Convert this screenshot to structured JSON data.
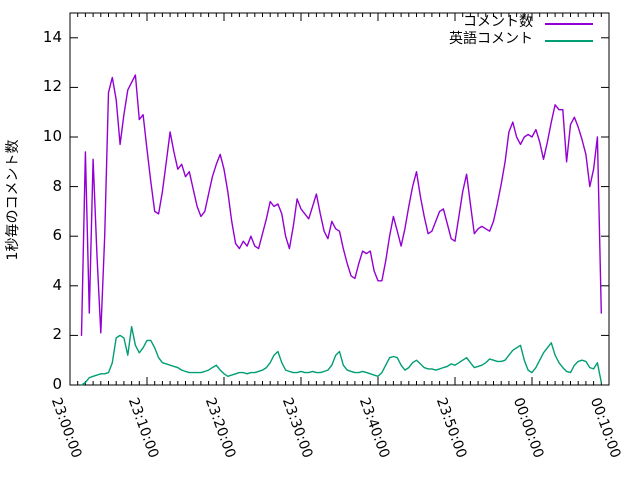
{
  "chart_data": {
    "type": "line",
    "title": "",
    "xlabel": "",
    "ylabel": "1秒毎のコメント数",
    "x_tick_labels": [
      "23:00:00",
      "23:10:00",
      "23:20:00",
      "23:30:00",
      "23:40:00",
      "23:50:00",
      "00:00:00",
      "00:10:00"
    ],
    "y_tick_labels": [
      "0",
      "2",
      "4",
      "6",
      "8",
      "10",
      "12",
      "14"
    ],
    "ylim": [
      0,
      15
    ],
    "x_range_minutes": 70,
    "x_major_tick_minutes": 10,
    "x_minor_tick_minutes": 1,
    "grid": false,
    "legend_position": "top-right-inside",
    "background_color": "#ffffff",
    "border_color": "#000000",
    "series": [
      {
        "name": "コメント数",
        "color": "#9400d3",
        "points": [
          [
            "23:01:30",
            2.0
          ],
          [
            "23:02:00",
            9.4
          ],
          [
            "23:02:30",
            2.9
          ],
          [
            "23:03:00",
            9.1
          ],
          [
            "23:03:30",
            5.2
          ],
          [
            "23:04:00",
            2.1
          ],
          [
            "23:04:30",
            6.0
          ],
          [
            "23:05:00",
            11.8
          ],
          [
            "23:05:30",
            12.4
          ],
          [
            "23:06:00",
            11.5
          ],
          [
            "23:06:30",
            9.7
          ],
          [
            "23:07:00",
            10.9
          ],
          [
            "23:07:30",
            11.9
          ],
          [
            "23:08:00",
            12.2
          ],
          [
            "23:08:30",
            12.5
          ],
          [
            "23:09:00",
            10.7
          ],
          [
            "23:09:30",
            10.9
          ],
          [
            "23:10:00",
            9.5
          ],
          [
            "23:10:30",
            8.2
          ],
          [
            "23:11:00",
            7.0
          ],
          [
            "23:11:30",
            6.9
          ],
          [
            "23:12:00",
            7.8
          ],
          [
            "23:12:30",
            9.0
          ],
          [
            "23:13:00",
            10.2
          ],
          [
            "23:13:30",
            9.4
          ],
          [
            "23:14:00",
            8.7
          ],
          [
            "23:14:30",
            8.9
          ],
          [
            "23:15:00",
            8.4
          ],
          [
            "23:15:30",
            8.6
          ],
          [
            "23:16:00",
            7.9
          ],
          [
            "23:16:30",
            7.2
          ],
          [
            "23:17:00",
            6.8
          ],
          [
            "23:17:30",
            7.0
          ],
          [
            "23:18:00",
            7.7
          ],
          [
            "23:18:30",
            8.4
          ],
          [
            "23:19:00",
            8.9
          ],
          [
            "23:19:30",
            9.3
          ],
          [
            "23:20:00",
            8.7
          ],
          [
            "23:20:30",
            7.8
          ],
          [
            "23:21:00",
            6.6
          ],
          [
            "23:21:30",
            5.7
          ],
          [
            "23:22:00",
            5.5
          ],
          [
            "23:22:30",
            5.8
          ],
          [
            "23:23:00",
            5.6
          ],
          [
            "23:23:30",
            6.0
          ],
          [
            "23:24:00",
            5.6
          ],
          [
            "23:24:30",
            5.5
          ],
          [
            "23:25:00",
            6.1
          ],
          [
            "23:25:30",
            6.7
          ],
          [
            "23:26:00",
            7.4
          ],
          [
            "23:26:30",
            7.2
          ],
          [
            "23:27:00",
            7.3
          ],
          [
            "23:27:30",
            6.9
          ],
          [
            "23:28:00",
            6.0
          ],
          [
            "23:28:30",
            5.5
          ],
          [
            "23:29:00",
            6.4
          ],
          [
            "23:29:30",
            7.5
          ],
          [
            "23:30:00",
            7.1
          ],
          [
            "23:30:30",
            6.9
          ],
          [
            "23:31:00",
            6.7
          ],
          [
            "23:31:30",
            7.2
          ],
          [
            "23:32:00",
            7.7
          ],
          [
            "23:32:30",
            6.9
          ],
          [
            "23:33:00",
            6.2
          ],
          [
            "23:33:30",
            5.9
          ],
          [
            "23:34:00",
            6.6
          ],
          [
            "23:34:30",
            6.3
          ],
          [
            "23:35:00",
            6.2
          ],
          [
            "23:35:30",
            5.5
          ],
          [
            "23:36:00",
            4.9
          ],
          [
            "23:36:30",
            4.4
          ],
          [
            "23:37:00",
            4.3
          ],
          [
            "23:37:30",
            4.9
          ],
          [
            "23:38:00",
            5.4
          ],
          [
            "23:38:30",
            5.3
          ],
          [
            "23:39:00",
            5.4
          ],
          [
            "23:39:30",
            4.6
          ],
          [
            "23:40:00",
            4.2
          ],
          [
            "23:40:30",
            4.2
          ],
          [
            "23:41:00",
            5.0
          ],
          [
            "23:41:30",
            6.0
          ],
          [
            "23:42:00",
            6.8
          ],
          [
            "23:42:30",
            6.2
          ],
          [
            "23:43:00",
            5.6
          ],
          [
            "23:43:30",
            6.3
          ],
          [
            "23:44:00",
            7.2
          ],
          [
            "23:44:30",
            8.0
          ],
          [
            "23:45:00",
            8.6
          ],
          [
            "23:45:30",
            7.6
          ],
          [
            "23:46:00",
            6.8
          ],
          [
            "23:46:30",
            6.1
          ],
          [
            "23:47:00",
            6.2
          ],
          [
            "23:47:30",
            6.6
          ],
          [
            "23:48:00",
            7.0
          ],
          [
            "23:48:30",
            7.1
          ],
          [
            "23:49:00",
            6.5
          ],
          [
            "23:49:30",
            5.9
          ],
          [
            "23:50:00",
            5.8
          ],
          [
            "23:50:30",
            6.8
          ],
          [
            "23:51:00",
            7.8
          ],
          [
            "23:51:30",
            8.5
          ],
          [
            "23:52:00",
            7.3
          ],
          [
            "23:52:30",
            6.1
          ],
          [
            "23:53:00",
            6.3
          ],
          [
            "23:53:30",
            6.4
          ],
          [
            "23:54:00",
            6.3
          ],
          [
            "23:54:30",
            6.2
          ],
          [
            "23:55:00",
            6.6
          ],
          [
            "23:55:30",
            7.3
          ],
          [
            "23:56:00",
            8.1
          ],
          [
            "23:56:30",
            9.0
          ],
          [
            "23:57:00",
            10.2
          ],
          [
            "23:57:30",
            10.6
          ],
          [
            "23:58:00",
            10.0
          ],
          [
            "23:58:30",
            9.7
          ],
          [
            "23:59:00",
            10.0
          ],
          [
            "23:59:30",
            10.1
          ],
          [
            "00:00:00",
            10.0
          ],
          [
            "00:00:30",
            10.3
          ],
          [
            "00:01:00",
            9.8
          ],
          [
            "00:01:30",
            9.1
          ],
          [
            "00:02:00",
            9.8
          ],
          [
            "00:02:30",
            10.6
          ],
          [
            "00:03:00",
            11.3
          ],
          [
            "00:03:30",
            11.1
          ],
          [
            "00:04:00",
            11.1
          ],
          [
            "00:04:30",
            9.0
          ],
          [
            "00:05:00",
            10.5
          ],
          [
            "00:05:30",
            10.8
          ],
          [
            "00:06:00",
            10.4
          ],
          [
            "00:06:30",
            9.9
          ],
          [
            "00:07:00",
            9.3
          ],
          [
            "00:07:30",
            8.0
          ],
          [
            "00:08:00",
            8.7
          ],
          [
            "00:08:30",
            10.0
          ],
          [
            "00:09:00",
            2.9
          ]
        ]
      },
      {
        "name": "英語コメント",
        "color": "#009e73",
        "points": [
          [
            "23:01:30",
            0.0
          ],
          [
            "23:02:00",
            0.1
          ],
          [
            "23:02:30",
            0.3
          ],
          [
            "23:03:00",
            0.35
          ],
          [
            "23:03:30",
            0.4
          ],
          [
            "23:04:00",
            0.45
          ],
          [
            "23:04:30",
            0.45
          ],
          [
            "23:05:00",
            0.5
          ],
          [
            "23:05:30",
            0.9
          ],
          [
            "23:06:00",
            1.9
          ],
          [
            "23:06:30",
            2.0
          ],
          [
            "23:07:00",
            1.9
          ],
          [
            "23:07:30",
            1.2
          ],
          [
            "23:08:00",
            2.35
          ],
          [
            "23:08:30",
            1.6
          ],
          [
            "23:09:00",
            1.3
          ],
          [
            "23:09:30",
            1.5
          ],
          [
            "23:10:00",
            1.8
          ],
          [
            "23:10:30",
            1.8
          ],
          [
            "23:11:00",
            1.5
          ],
          [
            "23:11:30",
            1.1
          ],
          [
            "23:12:00",
            0.9
          ],
          [
            "23:12:30",
            0.85
          ],
          [
            "23:13:00",
            0.8
          ],
          [
            "23:13:30",
            0.75
          ],
          [
            "23:14:00",
            0.7
          ],
          [
            "23:14:30",
            0.6
          ],
          [
            "23:15:00",
            0.55
          ],
          [
            "23:15:30",
            0.5
          ],
          [
            "23:16:00",
            0.5
          ],
          [
            "23:16:30",
            0.5
          ],
          [
            "23:17:00",
            0.5
          ],
          [
            "23:17:30",
            0.55
          ],
          [
            "23:18:00",
            0.6
          ],
          [
            "23:18:30",
            0.7
          ],
          [
            "23:19:00",
            0.8
          ],
          [
            "23:19:30",
            0.6
          ],
          [
            "23:20:00",
            0.45
          ],
          [
            "23:20:30",
            0.35
          ],
          [
            "23:21:00",
            0.4
          ],
          [
            "23:21:30",
            0.45
          ],
          [
            "23:22:00",
            0.5
          ],
          [
            "23:22:30",
            0.5
          ],
          [
            "23:23:00",
            0.45
          ],
          [
            "23:23:30",
            0.5
          ],
          [
            "23:24:00",
            0.5
          ],
          [
            "23:24:30",
            0.55
          ],
          [
            "23:25:00",
            0.6
          ],
          [
            "23:25:30",
            0.7
          ],
          [
            "23:26:00",
            0.9
          ],
          [
            "23:26:30",
            1.2
          ],
          [
            "23:27:00",
            1.35
          ],
          [
            "23:27:30",
            0.9
          ],
          [
            "23:28:00",
            0.6
          ],
          [
            "23:28:30",
            0.55
          ],
          [
            "23:29:00",
            0.5
          ],
          [
            "23:29:30",
            0.5
          ],
          [
            "23:30:00",
            0.55
          ],
          [
            "23:30:30",
            0.5
          ],
          [
            "23:31:00",
            0.5
          ],
          [
            "23:31:30",
            0.55
          ],
          [
            "23:32:00",
            0.5
          ],
          [
            "23:32:30",
            0.5
          ],
          [
            "23:33:00",
            0.55
          ],
          [
            "23:33:30",
            0.6
          ],
          [
            "23:34:00",
            0.8
          ],
          [
            "23:34:30",
            1.2
          ],
          [
            "23:35:00",
            1.35
          ],
          [
            "23:35:30",
            0.8
          ],
          [
            "23:36:00",
            0.6
          ],
          [
            "23:36:30",
            0.55
          ],
          [
            "23:37:00",
            0.5
          ],
          [
            "23:37:30",
            0.5
          ],
          [
            "23:38:00",
            0.55
          ],
          [
            "23:38:30",
            0.5
          ],
          [
            "23:39:00",
            0.45
          ],
          [
            "23:39:30",
            0.4
          ],
          [
            "23:40:00",
            0.35
          ],
          [
            "23:40:30",
            0.5
          ],
          [
            "23:41:00",
            0.8
          ],
          [
            "23:41:30",
            1.1
          ],
          [
            "23:42:00",
            1.15
          ],
          [
            "23:42:30",
            1.1
          ],
          [
            "23:43:00",
            0.8
          ],
          [
            "23:43:30",
            0.6
          ],
          [
            "23:44:00",
            0.7
          ],
          [
            "23:44:30",
            0.9
          ],
          [
            "23:45:00",
            1.0
          ],
          [
            "23:45:30",
            0.85
          ],
          [
            "23:46:00",
            0.7
          ],
          [
            "23:46:30",
            0.65
          ],
          [
            "23:47:00",
            0.65
          ],
          [
            "23:47:30",
            0.6
          ],
          [
            "23:48:00",
            0.65
          ],
          [
            "23:48:30",
            0.7
          ],
          [
            "23:49:00",
            0.75
          ],
          [
            "23:49:30",
            0.85
          ],
          [
            "23:50:00",
            0.8
          ],
          [
            "23:50:30",
            0.9
          ],
          [
            "23:51:00",
            1.0
          ],
          [
            "23:51:30",
            1.1
          ],
          [
            "23:52:00",
            0.9
          ],
          [
            "23:52:30",
            0.7
          ],
          [
            "23:53:00",
            0.75
          ],
          [
            "23:53:30",
            0.8
          ],
          [
            "23:54:00",
            0.9
          ],
          [
            "23:54:30",
            1.05
          ],
          [
            "23:55:00",
            1.0
          ],
          [
            "23:55:30",
            0.95
          ],
          [
            "23:56:00",
            0.95
          ],
          [
            "23:56:30",
            1.0
          ],
          [
            "23:57:00",
            1.2
          ],
          [
            "23:57:30",
            1.4
          ],
          [
            "23:58:00",
            1.5
          ],
          [
            "23:58:30",
            1.6
          ],
          [
            "23:59:00",
            1.0
          ],
          [
            "23:59:30",
            0.6
          ],
          [
            "00:00:00",
            0.5
          ],
          [
            "00:00:30",
            0.7
          ],
          [
            "00:01:00",
            1.0
          ],
          [
            "00:01:30",
            1.3
          ],
          [
            "00:02:00",
            1.5
          ],
          [
            "00:02:30",
            1.7
          ],
          [
            "00:03:00",
            1.2
          ],
          [
            "00:03:30",
            0.9
          ],
          [
            "00:04:00",
            0.7
          ],
          [
            "00:04:30",
            0.55
          ],
          [
            "00:05:00",
            0.5
          ],
          [
            "00:05:30",
            0.8
          ],
          [
            "00:06:00",
            0.95
          ],
          [
            "00:06:30",
            1.0
          ],
          [
            "00:07:00",
            0.95
          ],
          [
            "00:07:30",
            0.7
          ],
          [
            "00:08:00",
            0.65
          ],
          [
            "00:08:30",
            0.9
          ],
          [
            "00:09:00",
            0.1
          ]
        ]
      }
    ]
  }
}
